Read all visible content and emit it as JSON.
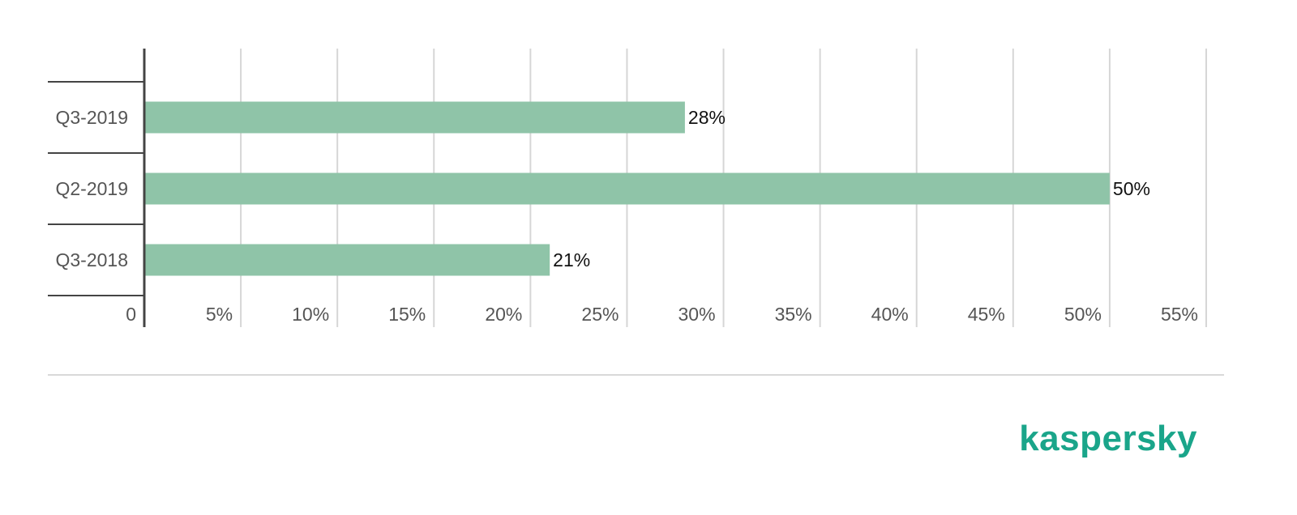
{
  "chart_data": {
    "type": "bar",
    "orientation": "horizontal",
    "categories": [
      "Q3-2019",
      "Q2-2019",
      "Q3-2018"
    ],
    "values": [
      28,
      50,
      21
    ],
    "data_labels": [
      "28%",
      "50%",
      "21%"
    ],
    "xlim": [
      0,
      55
    ],
    "x_ticks": [
      0,
      5,
      10,
      15,
      20,
      25,
      30,
      35,
      40,
      45,
      50,
      55
    ],
    "x_tick_labels": [
      "0",
      "5%",
      "10%",
      "15%",
      "20%",
      "25%",
      "30%",
      "35%",
      "40%",
      "45%",
      "50%",
      "55%"
    ],
    "grid": true,
    "legend": "none",
    "bar_color": "#8fc4a8"
  },
  "brand": {
    "logo_text": "kaspersky",
    "color": "#1aa58a"
  }
}
